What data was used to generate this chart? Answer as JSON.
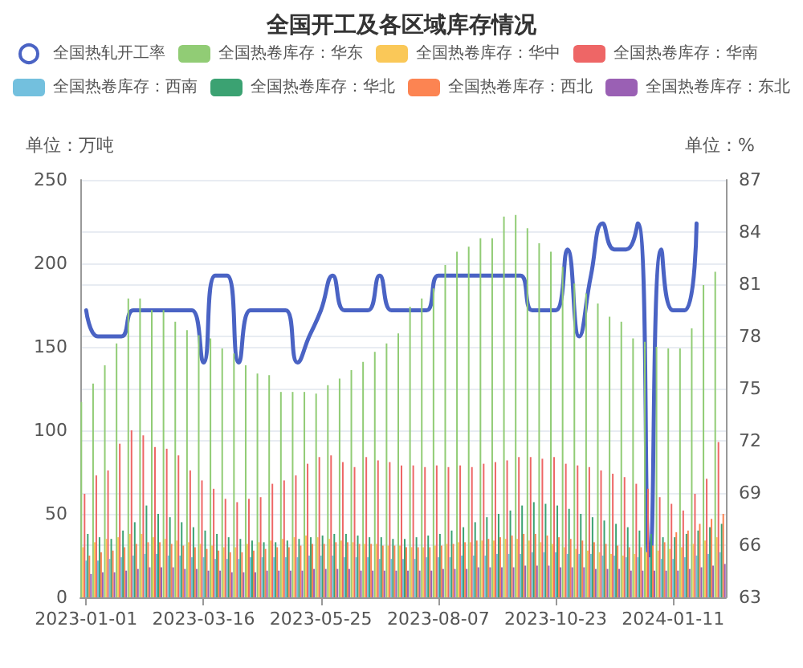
{
  "chart_data": {
    "type": "bar",
    "title": "全国开工及各区域库存情况",
    "categories": [
      "2023-01-01",
      null,
      null,
      null,
      null,
      null,
      null,
      null,
      null,
      null,
      "2023-03-16",
      null,
      null,
      null,
      null,
      null,
      null,
      null,
      null,
      null,
      "2023-05-25",
      null,
      null,
      null,
      null,
      null,
      null,
      null,
      null,
      null,
      "2023-08-07",
      null,
      null,
      null,
      null,
      null,
      null,
      null,
      null,
      null,
      "2023-10-23",
      null,
      null,
      null,
      null,
      null,
      null,
      null,
      null,
      null,
      "2024-01-11",
      null,
      null,
      null,
      null
    ],
    "series": [
      {
        "name": "全国热轧开工率",
        "type": "line",
        "axis": "y2",
        "color": "#4a63c4",
        "values": [
          79.5,
          78,
          78,
          78,
          79.5,
          79.5,
          79.5,
          79.5,
          79.5,
          79.5,
          76.5,
          81.5,
          81.5,
          76.5,
          79.5,
          79.5,
          79.5,
          79.5,
          76.5,
          78,
          79.5,
          81.5,
          79.5,
          79.5,
          79.5,
          81.5,
          79.5,
          79.5,
          79.5,
          79.5,
          81.5,
          81.5,
          81.5,
          81.5,
          81.5,
          81.5,
          81.5,
          81.5,
          79.5,
          79.5,
          79.5,
          83,
          78,
          81.5,
          84.5,
          83,
          83,
          84.5,
          65,
          83,
          79.5,
          79.5,
          84.5,
          null,
          null
        ]
      },
      {
        "name": "全国热卷库存：华东",
        "color": "#91cc75",
        "values": [
          117,
          128,
          139,
          152,
          179,
          179,
          172,
          172,
          165,
          160,
          157,
          155,
          149,
          146,
          139,
          134,
          133,
          123,
          123,
          123,
          122,
          127,
          131,
          136,
          141,
          147,
          152,
          158,
          174,
          179,
          185,
          199,
          207,
          210,
          215,
          215,
          228,
          229,
          221,
          212,
          207,
          198,
          188,
          182,
          176,
          168,
          165,
          155,
          153,
          150,
          149,
          149,
          161,
          187,
          195
        ]
      },
      {
        "name": "全国热卷库存：华中",
        "color": "#fac858",
        "values": [
          30,
          33,
          35,
          36,
          38,
          38,
          36,
          35,
          34,
          33,
          32,
          31,
          30,
          30,
          32,
          33,
          34,
          35,
          36,
          37,
          36,
          35,
          34,
          33,
          32,
          32,
          31,
          31,
          30,
          30,
          31,
          32,
          33,
          33,
          34,
          34,
          35,
          35,
          34,
          33,
          32,
          30,
          29,
          28,
          27,
          26,
          25,
          26,
          27,
          28,
          29,
          30,
          32,
          34,
          36
        ]
      },
      {
        "name": "全国热卷库存：华南",
        "color": "#ee6666",
        "values": [
          62,
          73,
          76,
          92,
          100,
          97,
          90,
          89,
          85,
          76,
          70,
          65,
          59,
          57,
          59,
          60,
          68,
          70,
          73,
          80,
          84,
          85,
          81,
          78,
          84,
          82,
          81,
          79,
          79,
          78,
          79,
          78,
          79,
          78,
          80,
          81,
          82,
          84,
          84,
          83,
          84,
          80,
          79,
          78,
          76,
          74,
          72,
          68,
          65,
          60,
          56,
          52,
          62,
          71,
          93
        ]
      },
      {
        "name": "全国热卷库存：西南",
        "color": "#73c0de",
        "values": [
          22,
          22,
          23,
          24,
          25,
          26,
          26,
          25,
          25,
          24,
          24,
          23,
          23,
          23,
          24,
          24,
          24,
          24,
          24,
          25,
          25,
          25,
          24,
          24,
          24,
          23,
          23,
          23,
          23,
          24,
          24,
          24,
          25,
          25,
          25,
          26,
          26,
          26,
          27,
          27,
          27,
          26,
          26,
          26,
          25,
          25,
          24,
          24,
          24,
          23,
          23,
          24,
          25,
          26,
          27
        ]
      },
      {
        "name": "全国热卷库存：华北",
        "color": "#3ba272",
        "values": [
          38,
          36,
          35,
          40,
          45,
          55,
          50,
          48,
          45,
          42,
          40,
          38,
          36,
          35,
          34,
          33,
          33,
          34,
          35,
          36,
          37,
          38,
          38,
          37,
          36,
          36,
          35,
          35,
          36,
          37,
          38,
          40,
          42,
          45,
          48,
          50,
          52,
          55,
          57,
          56,
          55,
          53,
          50,
          48,
          46,
          44,
          42,
          40,
          38,
          36,
          36,
          38,
          40,
          42,
          44
        ]
      },
      {
        "name": "全国热卷库存：西北",
        "color": "#fc8452",
        "values": [
          25,
          27,
          28,
          30,
          32,
          33,
          33,
          32,
          31,
          30,
          29,
          28,
          27,
          27,
          28,
          29,
          30,
          30,
          31,
          32,
          32,
          33,
          33,
          32,
          32,
          31,
          31,
          30,
          30,
          30,
          31,
          32,
          33,
          34,
          35,
          36,
          37,
          38,
          38,
          37,
          36,
          35,
          34,
          33,
          32,
          31,
          30,
          30,
          31,
          33,
          39,
          40,
          44,
          47,
          50
        ]
      },
      {
        "name": "全国热卷库存：东北",
        "color": "#9a60b4",
        "values": [
          14,
          15,
          15,
          16,
          17,
          18,
          18,
          18,
          17,
          17,
          16,
          16,
          15,
          15,
          15,
          16,
          16,
          16,
          16,
          17,
          17,
          17,
          17,
          16,
          16,
          16,
          16,
          16,
          16,
          16,
          17,
          17,
          17,
          18,
          18,
          18,
          18,
          19,
          19,
          19,
          18,
          18,
          18,
          17,
          17,
          17,
          16,
          16,
          16,
          16,
          16,
          17,
          18,
          19,
          20
        ]
      }
    ],
    "ylabel": "单位：万吨",
    "y2label": "单位：%",
    "ylim": [
      0,
      250
    ],
    "yticks": [
      0,
      50,
      100,
      150,
      200,
      250
    ],
    "y2lim": [
      63,
      87
    ],
    "y2ticks": [
      63,
      66,
      69,
      72,
      75,
      78,
      81,
      84,
      87
    ],
    "grid": "y",
    "legend": "top",
    "marker": "none"
  }
}
